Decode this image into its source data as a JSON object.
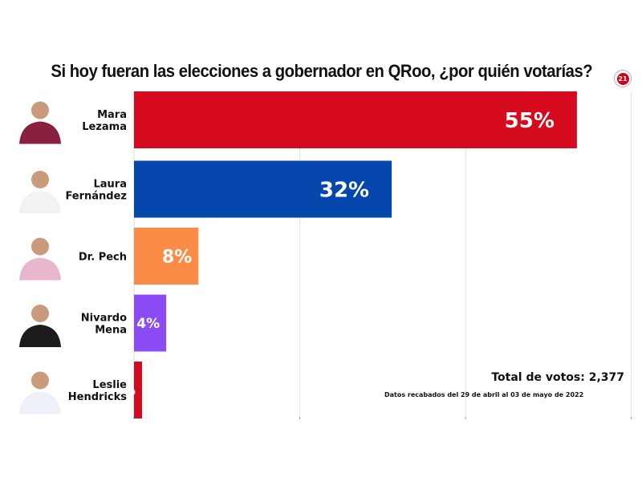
{
  "chart_data": {
    "type": "bar",
    "orientation": "horizontal",
    "title": "Si hoy fueran las elecciones a gobernador en QRoo, ¿por quién votarías?",
    "categories": [
      "Mara Lezama",
      "Laura Fernández",
      "Dr. Pech",
      "Nivardo Mena",
      "Leslie Hendricks"
    ],
    "category_lines": [
      [
        "Mara",
        "Lezama"
      ],
      [
        "Laura",
        "Fernández"
      ],
      [
        "Dr. Pech"
      ],
      [
        "Nivardo",
        "Mena"
      ],
      [
        "Leslie",
        "Hendricks"
      ]
    ],
    "values": [
      55,
      32,
      8,
      4,
      1
    ],
    "data_labels": [
      "55%",
      "32%",
      "8%",
      "4%",
      "1%"
    ],
    "colors": [
      "#d50a1f",
      "#0547ad",
      "#fa8c47",
      "#8c4cf5",
      "#d50a1f"
    ],
    "xlabel": "",
    "ylabel": "",
    "xlim": [
      0,
      58
    ],
    "gridlines": [
      0,
      20,
      40,
      60
    ],
    "grid": true,
    "legend": "none",
    "value_unit": "%"
  },
  "logo_text": "21",
  "total_votes": "Total de votos: 2,377",
  "date_note": "Datos recabados del 29 de abril al 03 de mayo de 2022"
}
